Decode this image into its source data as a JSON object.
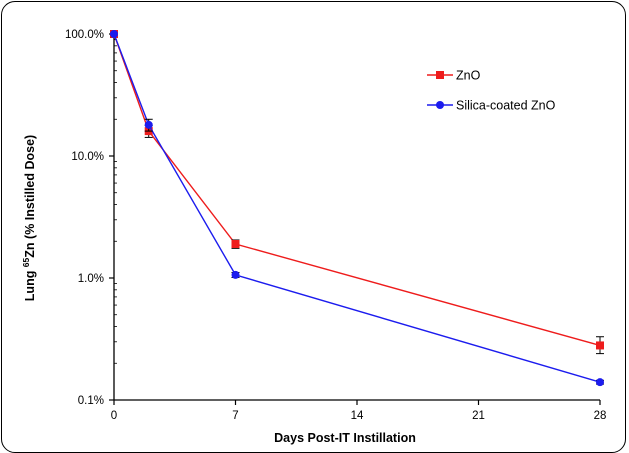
{
  "chart_data": {
    "type": "line",
    "xlabel": "Days Post-IT Instillation",
    "ylabel_prefix": "Lung ",
    "ylabel_sup": "65",
    "ylabel_suffix": "Zn (% Instilled Dose)",
    "y_scale": "log",
    "xlim": [
      0,
      28
    ],
    "ylim": [
      0.1,
      100
    ],
    "x_ticks": [
      0,
      7,
      14,
      21,
      28
    ],
    "y_ticks": [
      {
        "value": 100,
        "label": "100.0%"
      },
      {
        "value": 10,
        "label": "10.0%"
      },
      {
        "value": 1,
        "label": "1.0%"
      },
      {
        "value": 0.1,
        "label": "0.1%"
      }
    ],
    "grid": false,
    "legend_position": "top-right",
    "series": [
      {
        "name": "ZnO",
        "color": "#ee1c1c",
        "marker": "square",
        "x": [
          0,
          2,
          7,
          28
        ],
        "y": [
          100,
          16,
          1.9,
          0.28
        ],
        "err_lo": [
          0,
          1.8,
          0.15,
          0.04
        ],
        "err_hi": [
          0,
          1.8,
          0.15,
          0.05
        ]
      },
      {
        "name": "Silica-coated ZnO",
        "color": "#1c1cee",
        "marker": "circle",
        "x": [
          0,
          2,
          7,
          28
        ],
        "y": [
          100,
          18,
          1.06,
          0.14
        ],
        "err_lo": [
          0,
          2.0,
          0.05,
          0.005
        ],
        "err_hi": [
          0,
          2.0,
          0.05,
          0.005
        ]
      }
    ]
  }
}
